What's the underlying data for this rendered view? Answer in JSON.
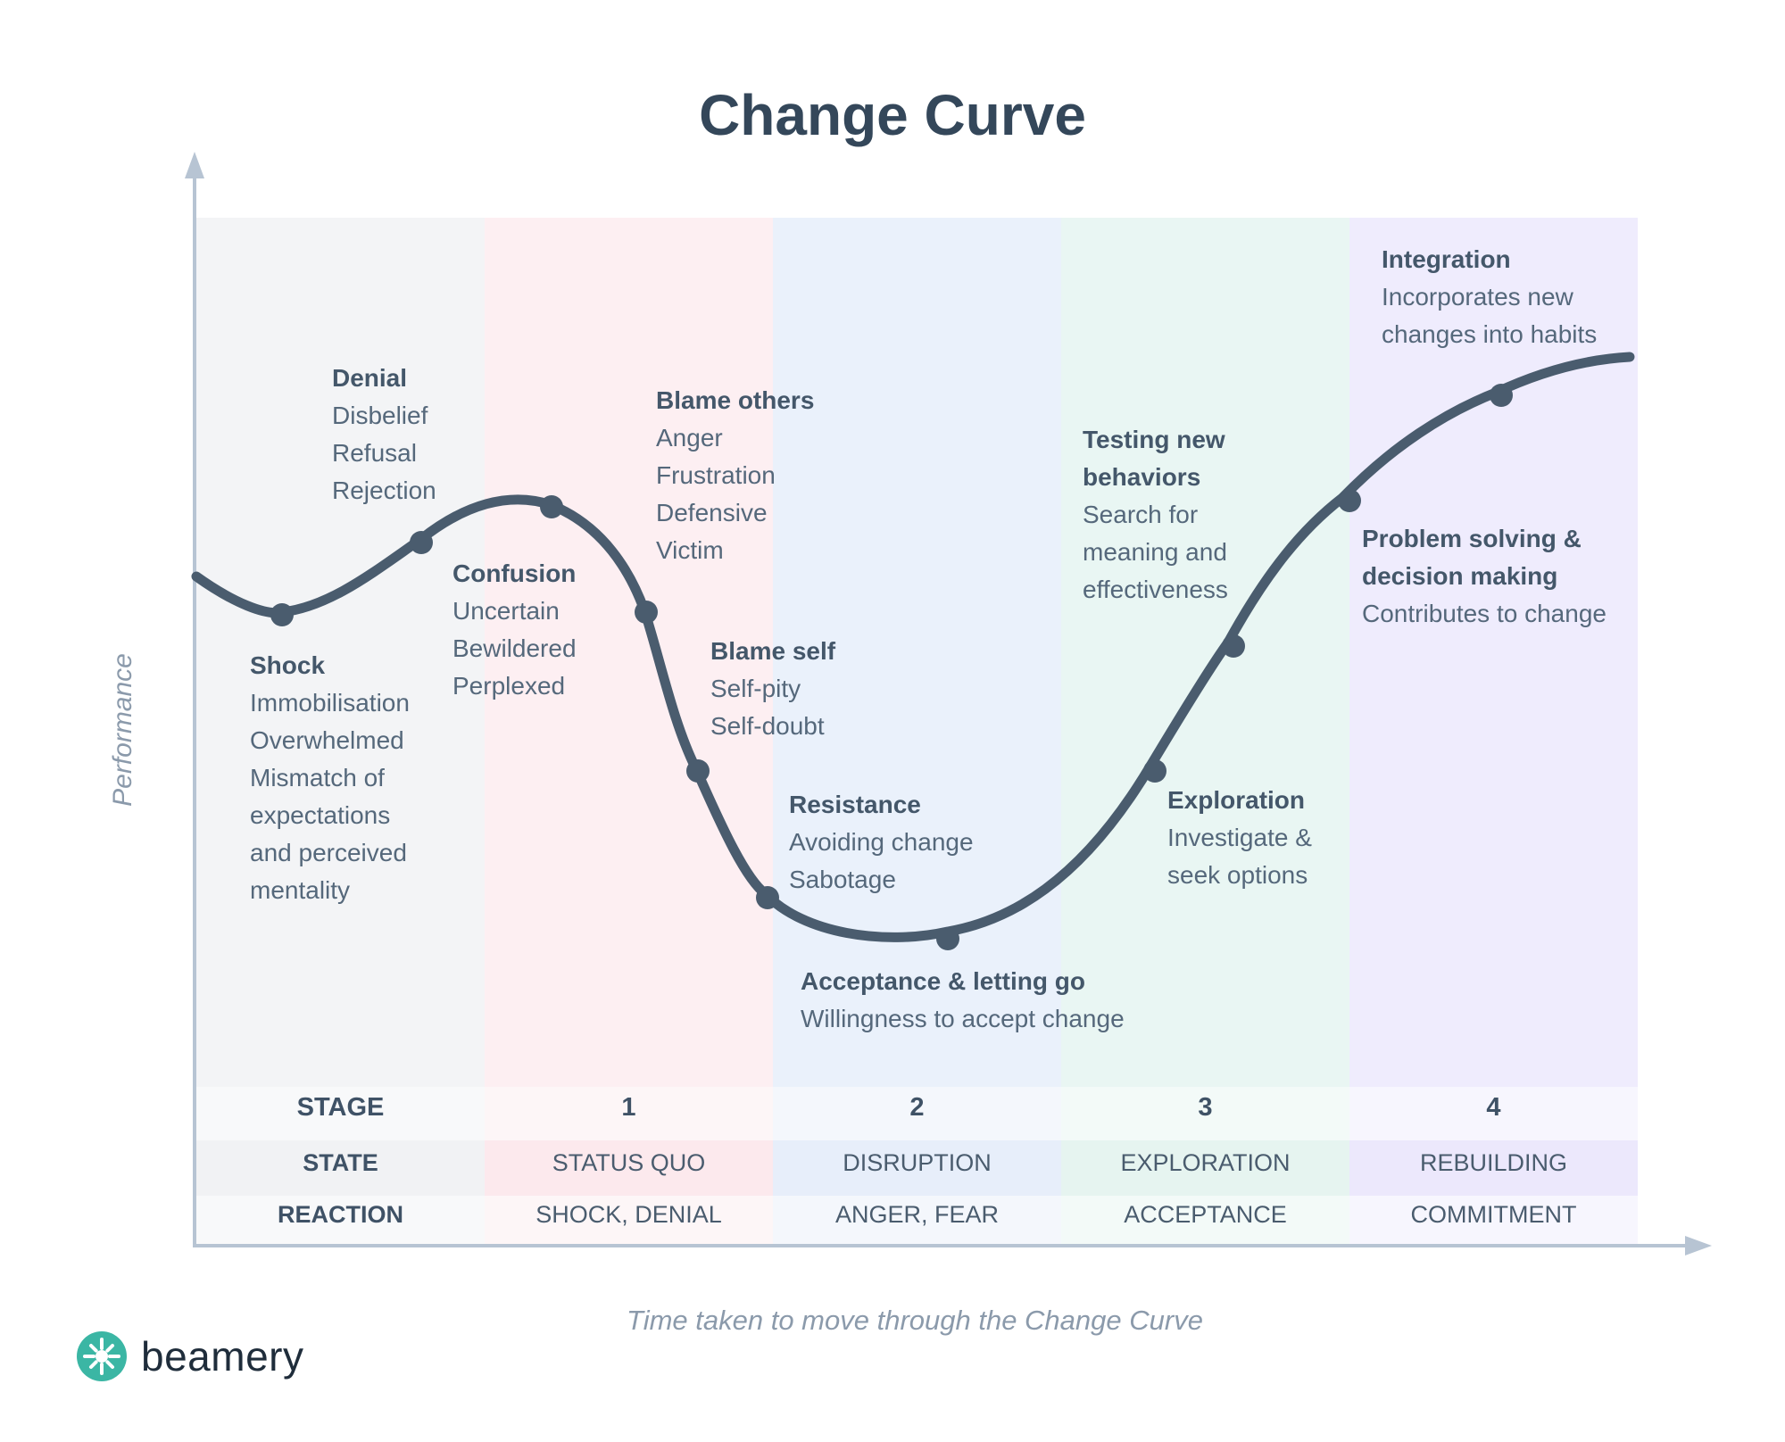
{
  "title": "Change Curve",
  "y_axis_label": "Performance",
  "x_axis_label": "Time taken to move through the Change Curve",
  "brand": "beamery",
  "colors": {
    "curve": "#4a5c6e",
    "axis": "#b7c4d3",
    "column_bg": [
      "#f3f4f6",
      "#fdeff2",
      "#eaf1fb",
      "#e9f6f3",
      "#efecfd"
    ],
    "row_stage": [
      "#f8f9fa",
      "#fdf6f7",
      "#f4f7fc",
      "#f3faf8",
      "#f7f6fe"
    ],
    "row_state": [
      "#f1f2f4",
      "#fce9ed",
      "#e7eefa",
      "#e6f4f0",
      "#ece8fc"
    ],
    "row_reaction": [
      "#f8f9fa",
      "#fdf6f7",
      "#f4f7fc",
      "#f3faf8",
      "#f7f6fe"
    ],
    "logo": "#3bb6a4"
  },
  "table": {
    "rows": [
      {
        "label": "STAGE",
        "cells": [
          "1",
          "2",
          "3",
          "4"
        ]
      },
      {
        "label": "STATE",
        "cells": [
          "STATUS QUO",
          "DISRUPTION",
          "EXPLORATION",
          "REBUILDING"
        ]
      },
      {
        "label": "REACTION",
        "cells": [
          "SHOCK, DENIAL",
          "ANGER, FEAR",
          "ACCEPTANCE",
          "COMMITMENT"
        ]
      }
    ]
  },
  "annotations": [
    {
      "heading": "Denial",
      "lines": [
        "Disbelief",
        "Refusal",
        "Rejection"
      ]
    },
    {
      "heading": "Shock",
      "lines": [
        "Immobilisation",
        "Overwhelmed",
        "Mismatch of",
        "expectations",
        "and perceived",
        "mentality"
      ]
    },
    {
      "heading": "Confusion",
      "lines": [
        "Uncertain",
        "Bewildered",
        "Perplexed"
      ]
    },
    {
      "heading": "Blame others",
      "lines": [
        "Anger",
        "Frustration",
        "Defensive",
        "Victim"
      ]
    },
    {
      "heading": "Blame self",
      "lines": [
        "Self-pity",
        "Self-doubt"
      ]
    },
    {
      "heading": "Resistance",
      "lines": [
        "Avoiding change",
        "Sabotage"
      ]
    },
    {
      "heading": "Acceptance & letting go",
      "lines": [
        "Willingness to accept change"
      ]
    },
    {
      "heading": "Exploration",
      "lines": [
        "Investigate &",
        "seek options"
      ]
    },
    {
      "heading": "Testing new",
      "lines": []
    },
    {
      "heading": "behaviors",
      "lines": [
        "Search for",
        "meaning and",
        "effectiveness"
      ]
    },
    {
      "heading": "Problem solving &",
      "lines": []
    },
    {
      "heading": "decision making",
      "lines": [
        "Contributes to change"
      ]
    },
    {
      "heading": "Integration",
      "lines": [
        "Incorporates new",
        "changes into habits"
      ]
    }
  ]
}
